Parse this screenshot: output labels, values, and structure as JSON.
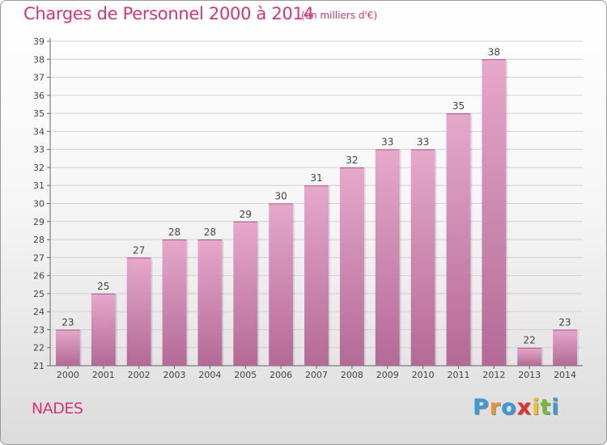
{
  "header": {
    "title": "Charges de Personnel 2000 à 2014",
    "subtitle": "(en milliers d'€)"
  },
  "footer": {
    "place": "NADES",
    "brand": [
      {
        "ch": "P",
        "color": "#3a9bd5"
      },
      {
        "ch": "r",
        "color": "#e8962d"
      },
      {
        "ch": "o",
        "color": "#3a9bd5"
      },
      {
        "ch": "x",
        "color": "#e0332c"
      },
      {
        "ch": "i",
        "color": "#f2c320"
      },
      {
        "ch": "t",
        "color": "#7cb83a"
      },
      {
        "ch": "i",
        "color": "#3a9bd5"
      }
    ]
  },
  "chart_data": {
    "type": "bar",
    "title": "Charges de Personnel 2000 à 2014",
    "subtitle": "(en milliers d'€)",
    "categories": [
      "2000",
      "2001",
      "2002",
      "2003",
      "2004",
      "2005",
      "2006",
      "2007",
      "2008",
      "2009",
      "2010",
      "2011",
      "2012",
      "2013",
      "2014"
    ],
    "values": [
      23,
      25,
      27,
      28,
      28,
      29,
      30,
      31,
      32,
      33,
      33,
      35,
      38,
      22,
      23
    ],
    "ylim": [
      21,
      39
    ],
    "yticks": [
      21,
      22,
      23,
      24,
      25,
      26,
      27,
      28,
      29,
      30,
      31,
      32,
      33,
      34,
      35,
      36,
      37,
      38,
      39
    ],
    "grid": true,
    "bar_color": "#d88bb5"
  }
}
